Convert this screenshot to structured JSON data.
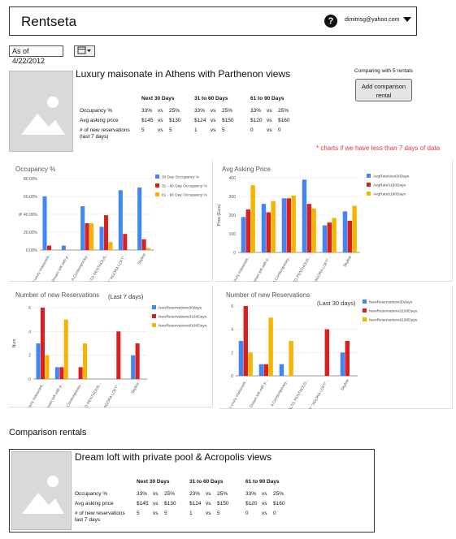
{
  "header": {
    "title": "Rentseta",
    "help_glyph": "?",
    "user_email": "dimitrisg@yahoo.com"
  },
  "date": {
    "as_of": "As of 4/22/2012"
  },
  "listing": {
    "title": "Luxury maisonate in Athens with Parthenon views",
    "comparing": "Comparing with 5 rentals",
    "add_button": "Add comparison rental",
    "periods": [
      "Next 30 Days",
      "31 to 60 Days",
      "61 to 90 Days"
    ],
    "rows": [
      {
        "label": "Occupancy %",
        "cells": [
          [
            "33%",
            "vs",
            "25%"
          ],
          [
            "33%",
            "vs",
            "25%"
          ],
          [
            "33%",
            "vs",
            "25%"
          ]
        ]
      },
      {
        "label": "Avg asking price",
        "cells": [
          [
            "$145",
            "vs",
            "$130"
          ],
          [
            "$124",
            "vs",
            "$150"
          ],
          [
            "$120",
            "vs",
            "$160"
          ]
        ]
      },
      {
        "label": "# of new reservations (last 7 days)",
        "cells": [
          [
            "5",
            "vs",
            "5"
          ],
          [
            "1",
            "vs",
            "5"
          ],
          [
            "0",
            "vs",
            "0"
          ]
        ]
      }
    ]
  },
  "note": "* charts if we have less than 7 days of data",
  "section_title": "Comparison rentals",
  "comparison": {
    "title": "Dream loft with private pool & Acropolis views",
    "periods": [
      "Next 30 Days",
      "31 to 60 Days",
      "61 to 90 Days"
    ],
    "rows": [
      {
        "label": "Occupancy %",
        "cells": [
          [
            "33%",
            "vs",
            "25%"
          ],
          [
            "23%",
            "vs",
            "25%"
          ],
          [
            "33%",
            "vs",
            "25%"
          ]
        ]
      },
      {
        "label": "Avg asking price",
        "cells": [
          [
            "$145",
            "vs",
            "$130"
          ],
          [
            "$124",
            "vs",
            "$150"
          ],
          [
            "$120",
            "vs",
            "$160"
          ]
        ]
      },
      {
        "label": "# of new reservations last 7 days",
        "cells": [
          [
            "5",
            "vs",
            "5"
          ],
          [
            "1",
            "vs",
            "5"
          ],
          [
            "0",
            "vs",
            "0"
          ]
        ]
      }
    ]
  },
  "colors": {
    "blue": "#4285f4",
    "red": "#db1f1f",
    "yellow": "#f4b400",
    "accent_note": "#e53935"
  },
  "chart_data": [
    {
      "type": "bar",
      "title": "Occupancy %",
      "ylabel": "%",
      "categories": [
        "Luxury maisonett...",
        "Dream loft with p...",
        "A Contemporary...",
        "ALTO PENTHOUS...",
        "5* \"AGORA LOFT\"...",
        "Skyline"
      ],
      "ylim": [
        0,
        80
      ],
      "yticks": [
        "0.00%",
        "20.00%",
        "40.00%",
        "60.00%",
        "80.00%"
      ],
      "series": [
        {
          "name": "30 Day Occupancy %",
          "values": [
            60,
            5,
            49,
            26,
            67,
            70
          ]
        },
        {
          "name": "31 - 60 Day Occupancy %",
          "values": [
            5,
            0,
            30,
            39,
            18,
            12
          ]
        },
        {
          "name": "61 - 90 Day Occupancy %",
          "values": [
            0,
            0,
            30,
            9,
            0,
            2
          ]
        }
      ]
    },
    {
      "type": "bar",
      "title": "Avg Asking Price",
      "ylabel": "Price (Euro)",
      "categories": [
        "Luxury maisonett...",
        "Dream loft with p...",
        "A Contemporary...",
        "ALTO PENTHOUS...",
        "5* \"AGORA LOFT\"...",
        "Skyline"
      ],
      "ylim": [
        0,
        400
      ],
      "yticks": [
        "0",
        "100",
        "200",
        "300",
        "400"
      ],
      "series": [
        {
          "name": "AvgRateNext30Days",
          "values": [
            190,
            260,
            290,
            390,
            145,
            220
          ]
        },
        {
          "name": "AvgRate3160Days",
          "values": [
            230,
            215,
            290,
            260,
            160,
            170
          ]
        },
        {
          "name": "AvgRate6190Days",
          "values": [
            360,
            275,
            305,
            235,
            185,
            250
          ]
        }
      ]
    },
    {
      "type": "bar",
      "title": "Number of new Reservations",
      "subtitle": "(Last 7 days)",
      "ylabel": "Num",
      "categories": [
        "Luxury maisonett...",
        "Dream loft with p...",
        "A Contemporary...",
        "ALTO PENTHOUS...",
        "5* \"AGORA LOFT\"...",
        "Skyline"
      ],
      "ylim": [
        0,
        6
      ],
      "yticks": [
        "0",
        "2",
        "4",
        "6"
      ],
      "series": [
        {
          "name": "NewReservations30days",
          "values": [
            3,
            1,
            0,
            0,
            0,
            2
          ]
        },
        {
          "name": "NewReservations3160Days",
          "values": [
            6,
            1,
            1,
            0,
            4,
            3
          ]
        },
        {
          "name": "NewReservations6190Days",
          "values": [
            2,
            5,
            3,
            0,
            0,
            0
          ]
        }
      ]
    },
    {
      "type": "bar",
      "title": "Number of new Reservations",
      "subtitle": "(Last 30 days)",
      "ylabel": "Num",
      "categories": [
        "Luxury maisonett...",
        "Dream loft with p...",
        "A Contemporary...",
        "ALTO PENTHOUS...",
        "5* \"AGORA LOFT\"...",
        "Skyline"
      ],
      "ylim": [
        0,
        6
      ],
      "yticks": [
        "0",
        "2",
        "4",
        "6"
      ],
      "series": [
        {
          "name": "NewReservations30days",
          "values": [
            3,
            1,
            1,
            0,
            0,
            2
          ]
        },
        {
          "name": "NewReservations3160Days",
          "values": [
            6,
            1,
            0,
            0,
            4,
            3
          ]
        },
        {
          "name": "NewReservations6190Days",
          "values": [
            2,
            5,
            3,
            0,
            0,
            0
          ]
        }
      ]
    }
  ]
}
